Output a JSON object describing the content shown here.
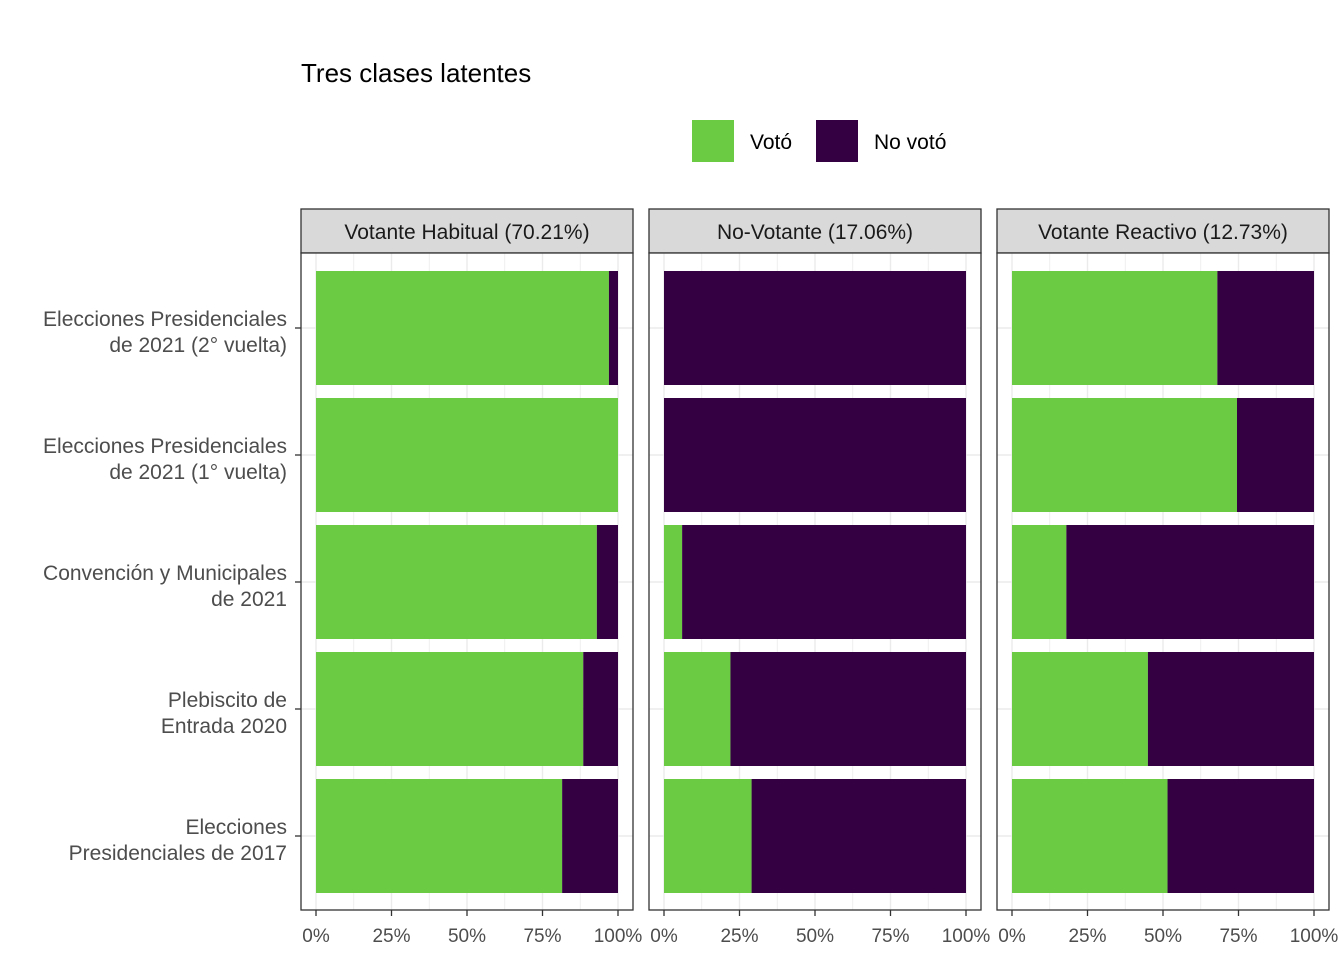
{
  "chart_data": {
    "type": "bar",
    "orientation": "horizontal",
    "stacked": "percent",
    "title": "Tres clases latentes",
    "legend": {
      "position": "top",
      "items": [
        {
          "name": "Votó",
          "color": "#6BCC43"
        },
        {
          "name": "No votó",
          "color": "#340042"
        }
      ]
    },
    "categories": [
      "Elecciones Presidenciales\nde 2021 (2° vuelta)",
      "Elecciones Presidenciales\nde 2021 (1° vuelta)",
      "Convención y Municipales\nde 2021",
      "Plebiscito de\nEntrada 2020",
      "Elecciones\nPresidenciales de 2017"
    ],
    "xticks": [
      "0%",
      "25%",
      "50%",
      "75%",
      "100%"
    ],
    "xlim": [
      0,
      100
    ],
    "grid": true,
    "facets": [
      {
        "label": "Votante Habitual (70.21%)",
        "voto": [
          97,
          100,
          93,
          88.5,
          81.5
        ]
      },
      {
        "label": "No-Votante (17.06%)",
        "voto": [
          0,
          0,
          6,
          22,
          29
        ]
      },
      {
        "label": "Votante Reactivo (12.73%)",
        "voto": [
          68,
          74.5,
          18,
          45,
          51.5
        ]
      }
    ],
    "colors": {
      "strip_bg": "#D9D9D9",
      "panel_border": "#333333",
      "grid": "#EBEBEB"
    }
  }
}
